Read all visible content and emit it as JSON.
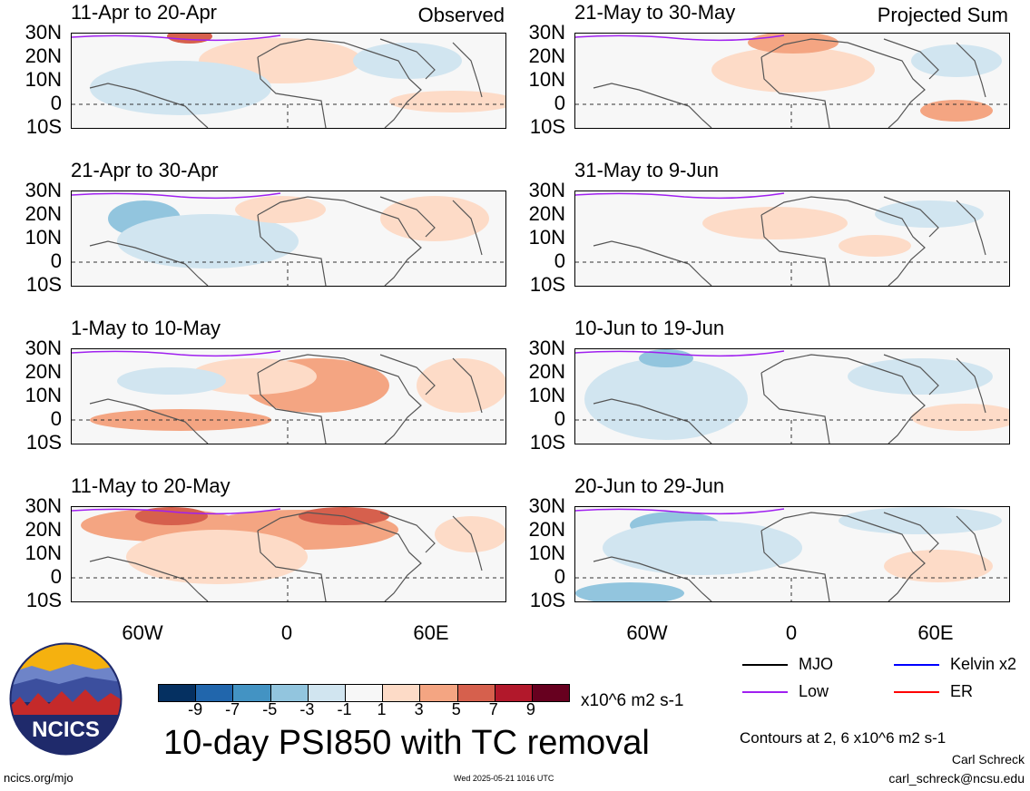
{
  "panels": [
    {
      "title": "11-Apr to 20-Apr",
      "label": "Observed"
    },
    {
      "title": "21-May to 30-May",
      "label": "Projected Sum"
    },
    {
      "title": "21-Apr to 30-Apr",
      "label": ""
    },
    {
      "title": "31-May to 9-Jun",
      "label": ""
    },
    {
      "title": "1-May to 10-May",
      "label": ""
    },
    {
      "title": "10-Jun to 19-Jun",
      "label": ""
    },
    {
      "title": "11-May to 20-May",
      "label": ""
    },
    {
      "title": "20-Jun to 29-Jun",
      "label": ""
    }
  ],
  "lat_labels": [
    "30N",
    "20N",
    "10N",
    "0",
    "10S"
  ],
  "lon_labels": [
    "60W",
    "0",
    "60E"
  ],
  "colorbar": {
    "ticks": [
      "-9",
      "-7",
      "-5",
      "-3",
      "-1",
      "1",
      "3",
      "5",
      "7",
      "9"
    ],
    "units": "x10^6 m2 s-1",
    "colors": [
      "#053061",
      "#2166ac",
      "#4393c3",
      "#92c5de",
      "#d1e5f0",
      "#f7f7f7",
      "#fddbc7",
      "#f4a582",
      "#d6604d",
      "#b2182b",
      "#67001f"
    ]
  },
  "legend": {
    "mjo": "MJO",
    "kelvin": "Kelvin x2",
    "low": "Low",
    "er": "ER",
    "colors": {
      "mjo": "#000000",
      "kelvin": "#0000ff",
      "low": "#a020f0",
      "er": "#ff0000"
    }
  },
  "logo": {
    "text": "NCICS"
  },
  "main_title": "10-day PSI850 with TC removal",
  "contours_note": "Contours at 2, 6 x10^6 m2 s-1",
  "author": "Carl Schreck",
  "email": "carl_schreck@ncsu.edu",
  "url": "ncics.org/mjo",
  "timestamp": "Wed 2025-05-21 1016 UTC"
}
